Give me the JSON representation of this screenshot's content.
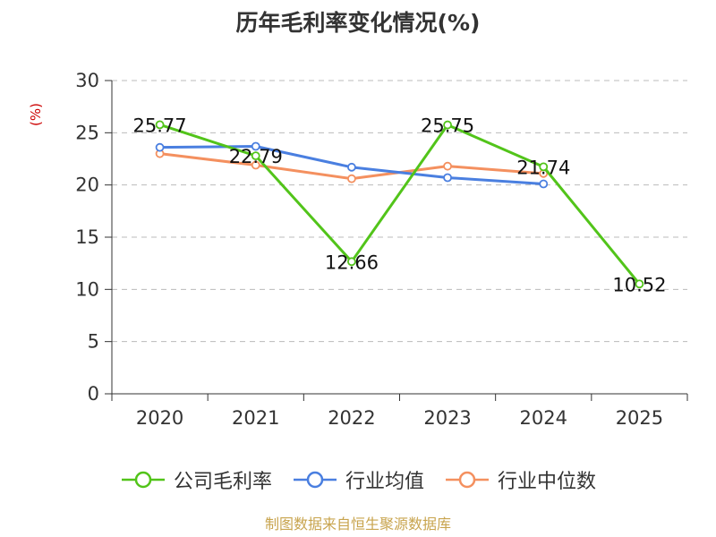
{
  "chart_data": {
    "type": "line",
    "title": "历年毛利率变化情况(%)",
    "ylabel": "(%)",
    "xlabel": "",
    "categories": [
      "2020",
      "2021",
      "2022",
      "2023",
      "2024",
      "2025"
    ],
    "ylim": [
      0,
      30
    ],
    "yticks": [
      0,
      5,
      10,
      15,
      20,
      25,
      30
    ],
    "grid": true,
    "legend_position": "bottom",
    "series": [
      {
        "name": "公司毛利率",
        "color": "#52c41a",
        "values": [
          25.77,
          22.79,
          12.66,
          25.75,
          21.74,
          10.52
        ],
        "labels": [
          "25.77",
          "22.79",
          "12.66",
          "25.75",
          "21.74",
          "10.52"
        ]
      },
      {
        "name": "行业均值",
        "color": "#4a7fe0",
        "values": [
          23.6,
          23.7,
          21.7,
          20.7,
          20.1,
          null
        ]
      },
      {
        "name": "行业中位数",
        "color": "#f4905f",
        "values": [
          23.0,
          21.9,
          20.6,
          21.8,
          21.1,
          null
        ]
      }
    ]
  },
  "source": "制图数据来自恒生聚源数据库"
}
